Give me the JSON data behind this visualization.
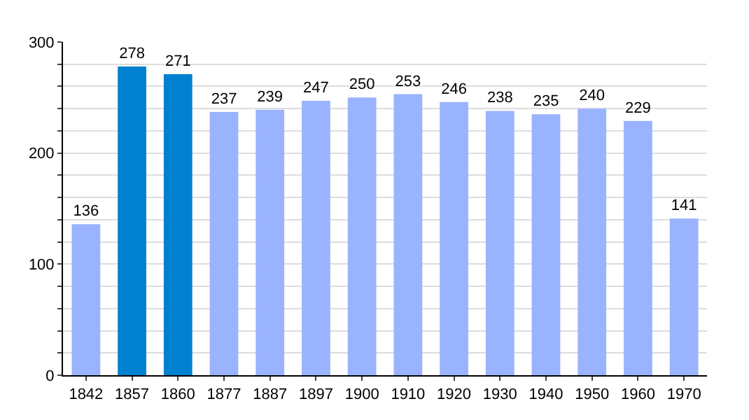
{
  "chart_data": {
    "type": "bar",
    "categories": [
      "1842",
      "1857",
      "1860",
      "1877",
      "1887",
      "1897",
      "1900",
      "1910",
      "1920",
      "1930",
      "1940",
      "1950",
      "1960",
      "1970"
    ],
    "values": [
      136,
      278,
      271,
      237,
      239,
      247,
      250,
      253,
      246,
      238,
      235,
      240,
      229,
      141
    ],
    "colors": [
      "#99b3ff",
      "#0080d0",
      "#0080d0",
      "#99b3ff",
      "#99b3ff",
      "#99b3ff",
      "#99b3ff",
      "#99b3ff",
      "#99b3ff",
      "#99b3ff",
      "#99b3ff",
      "#99b3ff",
      "#99b3ff",
      "#99b3ff"
    ],
    "ylim": [
      0,
      300
    ],
    "yticks": [
      0,
      {
        "value": 20,
        "label": null
      },
      {
        "value": 40,
        "label": null
      },
      {
        "value": 60,
        "label": null
      },
      {
        "value": 80,
        "label": null
      },
      100,
      {
        "value": 120,
        "label": null
      },
      {
        "value": 140,
        "label": null
      },
      {
        "value": 160,
        "label": null
      },
      {
        "value": 180,
        "label": null
      },
      200,
      {
        "value": 220,
        "label": null
      },
      {
        "value": 240,
        "label": null
      },
      {
        "value": 260,
        "label": null
      },
      {
        "value": 280,
        "label": null
      },
      300
    ],
    "grid": "y",
    "data_labels": true
  }
}
